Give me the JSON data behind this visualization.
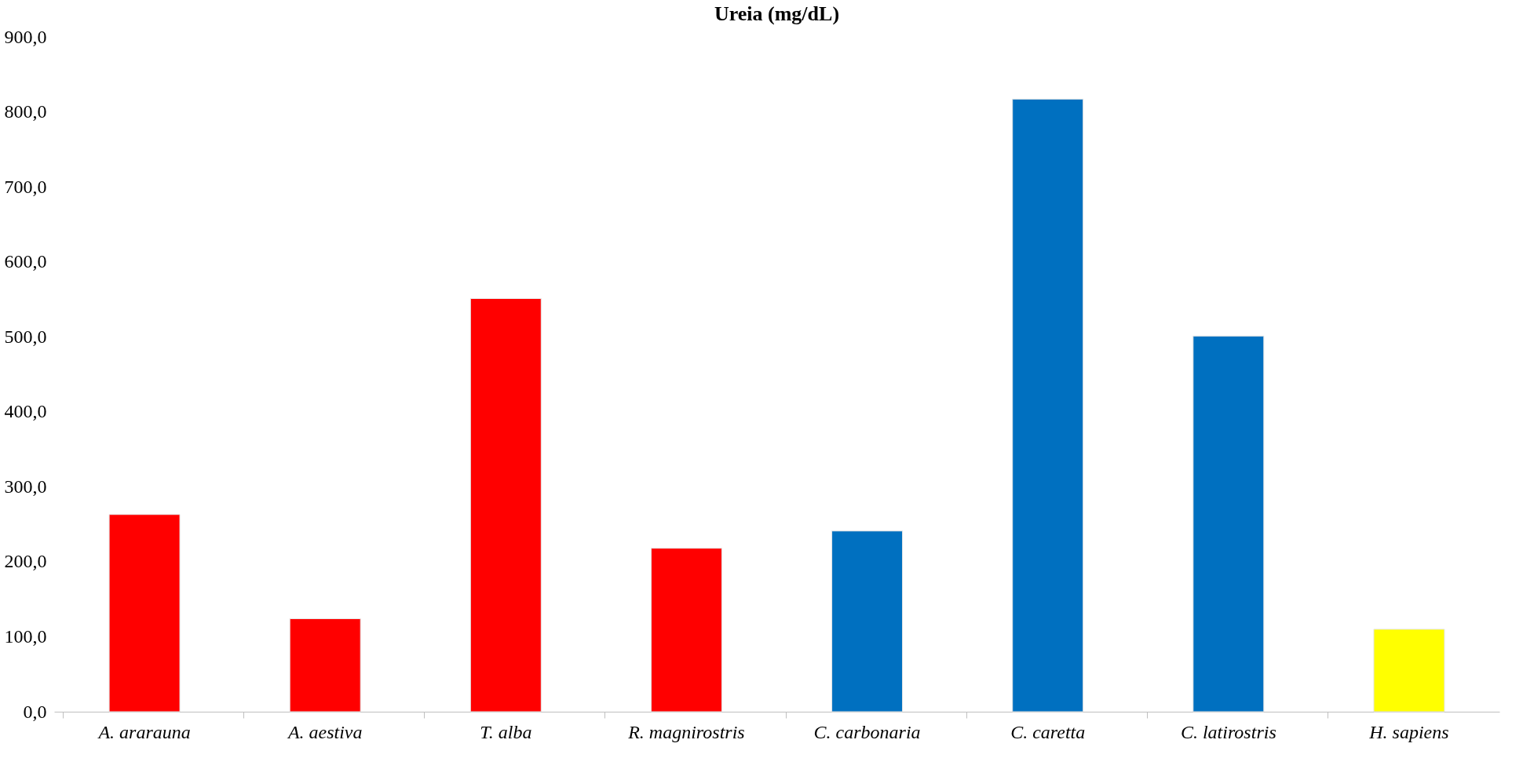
{
  "chart_data": {
    "type": "bar",
    "title": "Ureia (mg/dL)",
    "categories": [
      "A. ararauna",
      "A. aestiva",
      "T. alba",
      "R. magnirostris",
      "C. carbonaria",
      "C. caretta",
      "C. latirostris",
      "H. sapiens"
    ],
    "values": [
      263,
      124,
      551,
      218,
      241,
      817,
      501,
      110
    ],
    "colors": [
      "#ff0000",
      "#ff0000",
      "#ff0000",
      "#ff0000",
      "#0070c0",
      "#0070c0",
      "#0070c0",
      "#ffff00"
    ],
    "ylim": [
      0,
      900
    ],
    "yticks": [
      {
        "value": 0,
        "label": "0,0"
      },
      {
        "value": 100,
        "label": "100,0"
      },
      {
        "value": 200,
        "label": "200,0"
      },
      {
        "value": 300,
        "label": "300,0"
      },
      {
        "value": 400,
        "label": "400,0"
      },
      {
        "value": 500,
        "label": "500,0"
      },
      {
        "value": 600,
        "label": "600,0"
      },
      {
        "value": 700,
        "label": "700,0"
      },
      {
        "value": 800,
        "label": "800,0"
      },
      {
        "value": 900,
        "label": "900,0"
      }
    ],
    "grid": false
  }
}
